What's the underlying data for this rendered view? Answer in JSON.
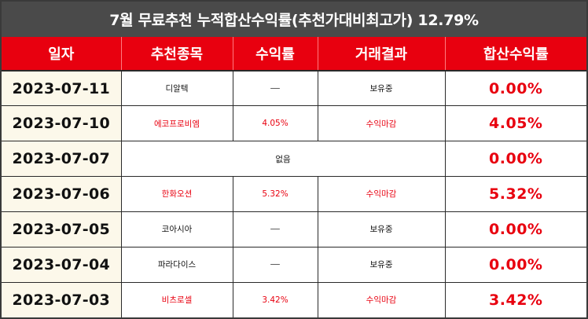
{
  "title": "7월 무료추천 누적합산수익률(추천가대비최고가) 12.79%",
  "headers": [
    "일자",
    "추천종목",
    "수익률",
    "거래결과",
    "합산수익률"
  ],
  "rows": [
    {
      "date": "2023-07-11",
      "stock": "디알텍",
      "return": "—",
      "result": "보유중",
      "total": "0.00%",
      "highlight": false
    },
    {
      "date": "2023-07-10",
      "stock": "에코프로비엠",
      "return": "4.05%",
      "result": "수익마감",
      "total": "4.05%",
      "highlight": true
    },
    {
      "date": "2023-07-07",
      "stock": "없음",
      "return": "",
      "result": "",
      "total": "0.00%",
      "highlight": false
    },
    {
      "date": "2023-07-06",
      "stock": "한화오션",
      "return": "5.32%",
      "result": "수익마감",
      "total": "5.32%",
      "highlight": true
    },
    {
      "date": "2023-07-05",
      "stock": "코아시아",
      "return": "—",
      "result": "보유중",
      "total": "0.00%",
      "highlight": false
    },
    {
      "date": "2023-07-04",
      "stock": "파라다이스",
      "return": "—",
      "result": "보유중",
      "total": "0.00%",
      "highlight": false
    },
    {
      "date": "2023-07-03",
      "stock": "비츠로셀",
      "return": "3.42%",
      "result": "수익마감",
      "total": "3.42%",
      "highlight": true
    }
  ],
  "colors": {
    "title_bg": "#4a4a4a",
    "header_bg": "#e8000f",
    "date_bg": "#fcf8ea",
    "accent": "#e8000f"
  }
}
